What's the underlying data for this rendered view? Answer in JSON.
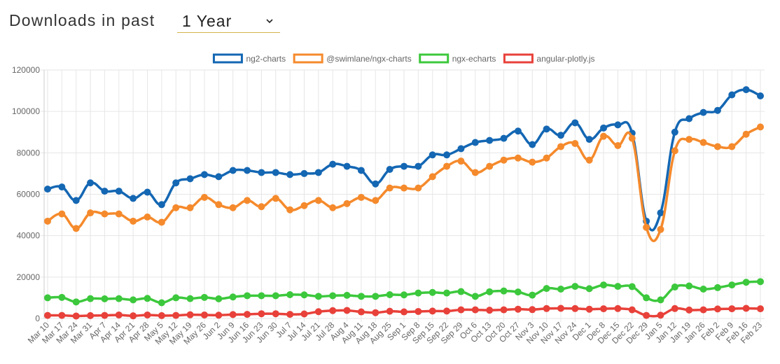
{
  "header": {
    "title": "Downloads in past",
    "period": "1 Year"
  },
  "chart_data": {
    "type": "line",
    "categories": [
      "Mar 10",
      "Mar 17",
      "Mar 24",
      "Mar 31",
      "Apr 7",
      "Apr 14",
      "Apr 21",
      "Apr 28",
      "May 5",
      "May 12",
      "May 19",
      "May 26",
      "Jun 2",
      "Jun 9",
      "Jun 16",
      "Jun 23",
      "Jun 30",
      "Jul 7",
      "Jul 14",
      "Jul 21",
      "Jul 28",
      "Aug 4",
      "Aug 11",
      "Aug 18",
      "Aug 25",
      "Sep 1",
      "Sep 8",
      "Sep 15",
      "Sep 22",
      "Sep 29",
      "Oct 6",
      "Oct 13",
      "Oct 20",
      "Oct 27",
      "Nov 3",
      "Nov 10",
      "Nov 17",
      "Nov 24",
      "Dec 1",
      "Dec 8",
      "Dec 15",
      "Dec 22",
      "Dec 29",
      "Jan 5",
      "Jan 12",
      "Jan 19",
      "Jan 26",
      "Feb 2",
      "Feb 9",
      "Feb 16",
      "Feb 23"
    ],
    "series": [
      {
        "name": "ng2-charts",
        "color": "#1467b3",
        "values": [
          62500,
          63500,
          57000,
          65500,
          61500,
          61500,
          58000,
          61000,
          55000,
          65500,
          67500,
          69500,
          68500,
          71500,
          71500,
          70500,
          70500,
          69500,
          70000,
          70500,
          74500,
          73500,
          71500,
          65000,
          72000,
          73500,
          73500,
          79000,
          79000,
          82000,
          85000,
          86000,
          87000,
          90500,
          84000,
          91500,
          88500,
          94500,
          86500,
          92000,
          93500,
          89500,
          47000,
          51000,
          90000,
          96500,
          99500,
          100500,
          108000,
          110500,
          107500
        ]
      },
      {
        "name": "@swimlane/ngx-charts",
        "color": "#f58a2c",
        "values": [
          47000,
          50500,
          43500,
          51000,
          50500,
          50500,
          47000,
          49000,
          46500,
          53500,
          53500,
          58500,
          55000,
          53500,
          57000,
          54000,
          58000,
          52500,
          54500,
          57000,
          53500,
          55500,
          58500,
          57000,
          63000,
          63000,
          63000,
          68500,
          73500,
          76000,
          70500,
          73500,
          76500,
          77500,
          75500,
          77500,
          83000,
          84500,
          76500,
          88000,
          83500,
          87000,
          44000,
          43000,
          81000,
          86500,
          85000,
          83000,
          83000,
          89000,
          92500
        ]
      },
      {
        "name": "ngx-echarts",
        "color": "#3cc83c",
        "values": [
          10000,
          10200,
          8000,
          9600,
          9500,
          9600,
          9000,
          9700,
          7600,
          10000,
          9600,
          10200,
          9500,
          10400,
          11000,
          11000,
          11000,
          11500,
          11400,
          10700,
          11000,
          11200,
          10700,
          10700,
          11500,
          11400,
          12300,
          12600,
          12300,
          13000,
          10700,
          12900,
          13300,
          12800,
          11300,
          14500,
          14200,
          15500,
          14400,
          16200,
          15500,
          15400,
          10000,
          9000,
          15200,
          15700,
          14200,
          14900,
          16200,
          17500,
          17800
        ]
      },
      {
        "name": "angular-plotly.js",
        "color": "#e8413a",
        "values": [
          1500,
          1500,
          1200,
          1400,
          1500,
          1700,
          1300,
          1700,
          1400,
          1500,
          1800,
          1700,
          1600,
          1900,
          2000,
          2300,
          2300,
          2000,
          2200,
          3300,
          3800,
          3900,
          3200,
          2800,
          3500,
          3200,
          3400,
          3600,
          3600,
          4200,
          4200,
          4000,
          4200,
          4500,
          4300,
          4800,
          4900,
          4800,
          4500,
          4700,
          4800,
          4200,
          1500,
          1600,
          4800,
          4100,
          4200,
          4600,
          4700,
          4900,
          4700
        ]
      }
    ],
    "ylim": [
      0,
      120000
    ],
    "yticks": [
      0,
      20000,
      40000,
      60000,
      80000,
      100000,
      120000
    ],
    "grid": true,
    "legend": "top"
  }
}
